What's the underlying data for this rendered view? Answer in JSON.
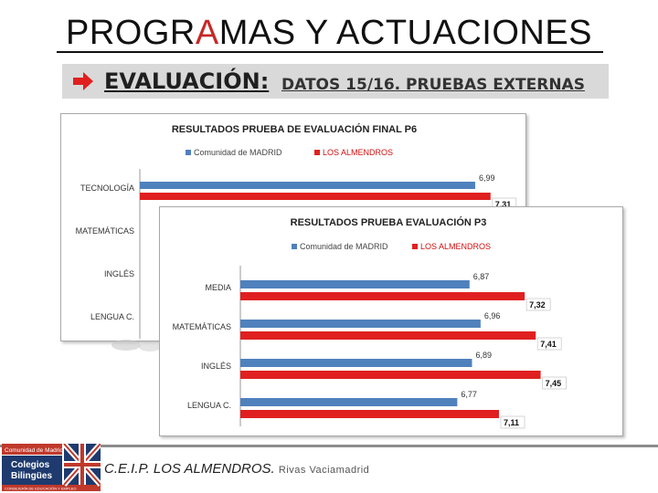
{
  "slide": {
    "title_before": "PROGR",
    "title_accent": "A",
    "title_after": "MAS Y ACTUACIONES",
    "subtitle_main": "EVALUACIÓN:",
    "subtitle_rest": " DATOS 15/16. PRUEBAS EXTERNAS"
  },
  "colors": {
    "madrid": "#4f81bd",
    "almendros": "#e02020",
    "accent": "#c62828",
    "logo_red": "#c0392b",
    "logo_navy": "#1e3a6e"
  },
  "footer": {
    "school": "C.E.I.P. LOS ALMENDROS.",
    "town": "Rivas Vaciamadrid",
    "logo_top": "Comunidad de Madrid",
    "logo_line1": "Colegios",
    "logo_line2": "Bilingües",
    "logo_bottom": "CONSEJERÍA DE EDUCACIÓN Y EMPLEO"
  },
  "chart_data": [
    {
      "type": "bar",
      "orientation": "horizontal",
      "title": "RESULTADOS PRUEBA DE EVALUACIÓN FINAL P6",
      "categories": [
        "TECNOLOGÍA",
        "MATEMÁTICAS",
        "INGLÉS",
        "LENGUA C."
      ],
      "series": [
        {
          "name": "Comunidad de MADRID",
          "values": [
            6.99,
            null,
            null,
            null
          ],
          "labels": [
            "6,99",
            "",
            "",
            ""
          ]
        },
        {
          "name": "LOS ALMENDROS",
          "values": [
            7.31,
            null,
            null,
            null
          ],
          "labels": [
            "7,31",
            "",
            "",
            ""
          ]
        }
      ],
      "xlim": [
        0,
        8
      ],
      "legend": "top"
    },
    {
      "type": "bar",
      "orientation": "horizontal",
      "title": "RESULTADOS PRUEBA  EVALUACIÓN P3",
      "categories": [
        "MEDIA",
        "MATEMÁTICAS",
        "INGLÉS",
        "LENGUA C."
      ],
      "series": [
        {
          "name": "Comunidad de MADRID",
          "values": [
            6.87,
            6.96,
            6.89,
            6.77
          ],
          "labels": [
            "6,87",
            "6,96",
            "6,89",
            "6,77"
          ]
        },
        {
          "name": "LOS ALMENDROS",
          "values": [
            7.32,
            7.41,
            7.45,
            7.11
          ],
          "labels": [
            "7,32",
            "7,41",
            "7,45",
            "7,11"
          ]
        }
      ],
      "xlim": [
        5,
        7.55
      ],
      "legend": "top"
    }
  ]
}
